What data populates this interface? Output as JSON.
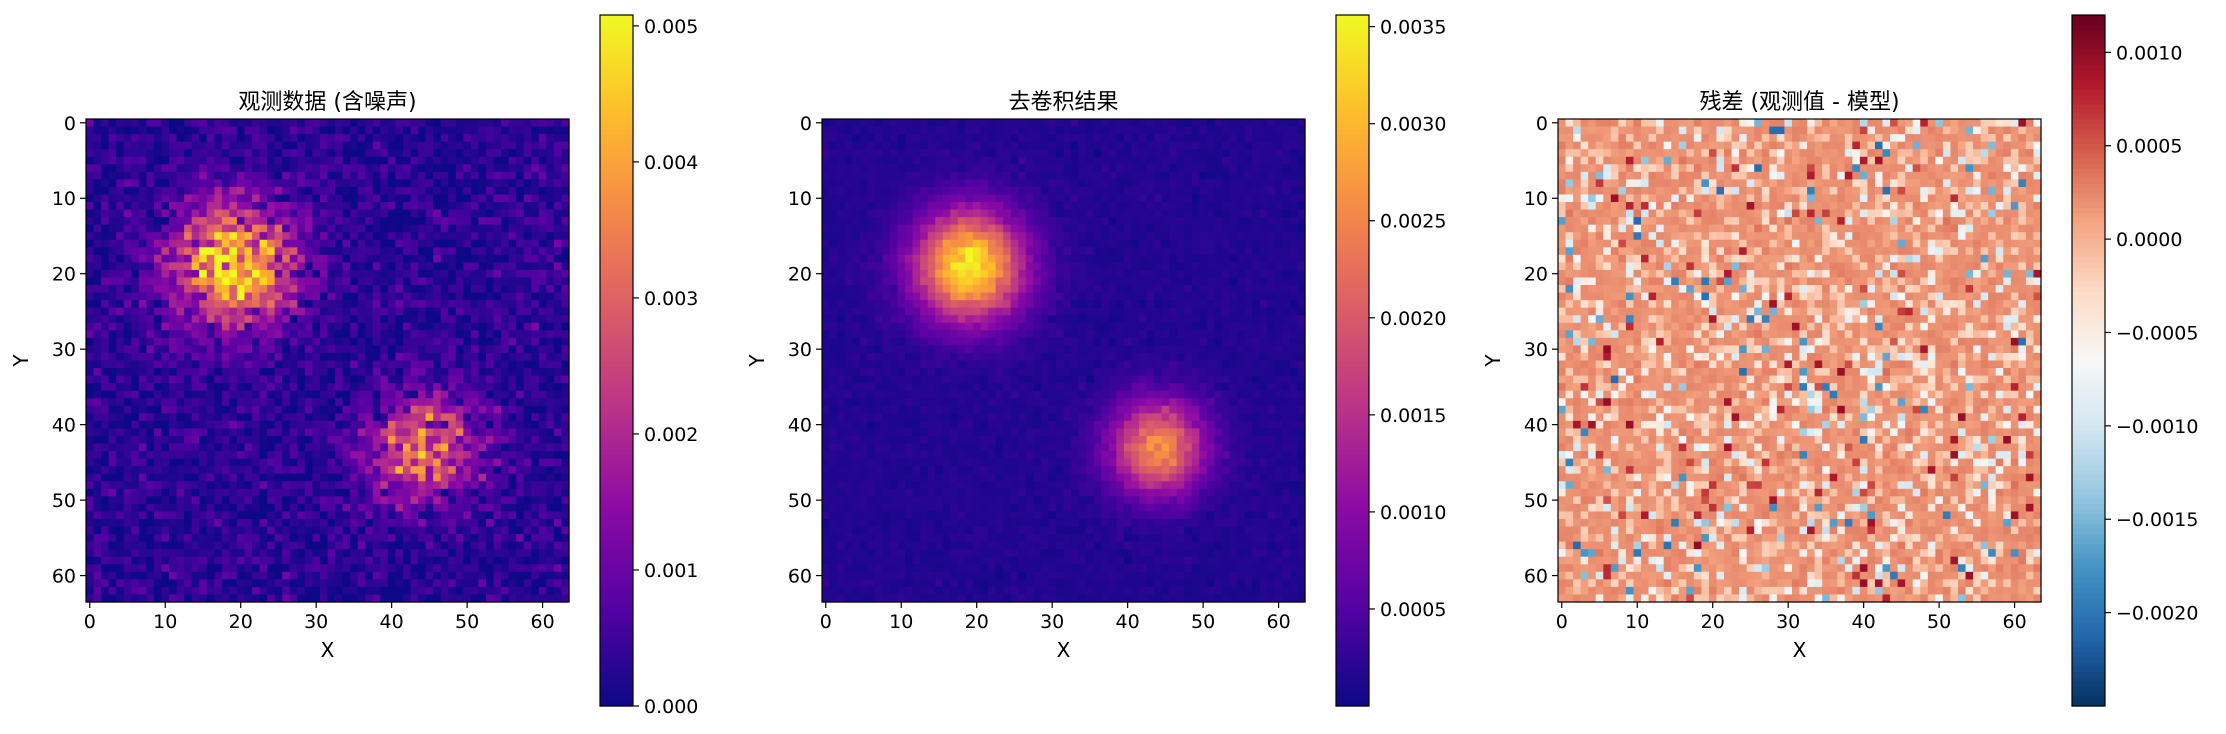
{
  "chart_data": [
    {
      "type": "heatmap",
      "title": "观测数据 (含噪声)",
      "xlabel": "X",
      "ylabel": "Y",
      "grid_size": [
        64,
        64
      ],
      "xlim": [
        -0.5,
        63.5
      ],
      "ylim": [
        63.5,
        -0.5
      ],
      "xticks": [
        0,
        10,
        20,
        30,
        40,
        50,
        60
      ],
      "yticks": [
        0,
        10,
        20,
        30,
        40,
        50,
        60
      ],
      "colormap": "plasma",
      "colorbar": {
        "min": 0.0,
        "max": 0.00508,
        "ticks": [
          0.0,
          0.001,
          0.002,
          0.003,
          0.004,
          0.005
        ],
        "tick_labels": [
          "0.000",
          "0.001",
          "0.002",
          "0.003",
          "0.004",
          "0.005"
        ]
      },
      "sources": [
        {
          "center": [
            19,
            19
          ],
          "peak": 0.0042,
          "sigma": 5.5
        },
        {
          "center": [
            44,
            43
          ],
          "peak": 0.003,
          "sigma": 4.8
        }
      ],
      "background": 0.0003,
      "noise": "high"
    },
    {
      "type": "heatmap",
      "title": "去卷积结果",
      "xlabel": "X",
      "ylabel": "Y",
      "grid_size": [
        64,
        64
      ],
      "xlim": [
        -0.5,
        63.5
      ],
      "ylim": [
        63.5,
        -0.5
      ],
      "xticks": [
        0,
        10,
        20,
        30,
        40,
        50,
        60
      ],
      "yticks": [
        0,
        10,
        20,
        30,
        40,
        50,
        60
      ],
      "colormap": "plasma",
      "colorbar": {
        "min": 0.0,
        "max": 0.00356,
        "ticks": [
          0.0005,
          0.001,
          0.0015,
          0.002,
          0.0025,
          0.003,
          0.0035
        ],
        "tick_labels": [
          "0.0005",
          "0.0010",
          "0.0015",
          "0.0020",
          "0.0025",
          "0.0030",
          "0.0035"
        ]
      },
      "sources": [
        {
          "center": [
            19,
            19
          ],
          "peak": 0.0033,
          "sigma": 5.0
        },
        {
          "center": [
            44,
            43
          ],
          "peak": 0.0025,
          "sigma": 4.3
        }
      ],
      "background": 0.00015,
      "noise": "low"
    },
    {
      "type": "heatmap",
      "title": "残差 (观测值 - 模型)",
      "xlabel": "X",
      "ylabel": "Y",
      "grid_size": [
        64,
        64
      ],
      "xlim": [
        -0.5,
        63.5
      ],
      "ylim": [
        63.5,
        -0.5
      ],
      "xticks": [
        0,
        10,
        20,
        30,
        40,
        50,
        60
      ],
      "yticks": [
        0,
        10,
        20,
        30,
        40,
        50,
        60
      ],
      "colormap": "RdBu_r",
      "colorbar": {
        "min": -0.0025,
        "max": 0.0012,
        "ticks": [
          -0.002,
          -0.0015,
          -0.001,
          -0.0005,
          0.0,
          0.0005,
          0.001
        ],
        "tick_labels": [
          "−0.0020",
          "−0.0015",
          "−0.0010",
          "−0.0005",
          "0.0000",
          "0.0005",
          "0.0010"
        ]
      },
      "dominant_value": 0.0002,
      "noise": "scattered"
    }
  ]
}
